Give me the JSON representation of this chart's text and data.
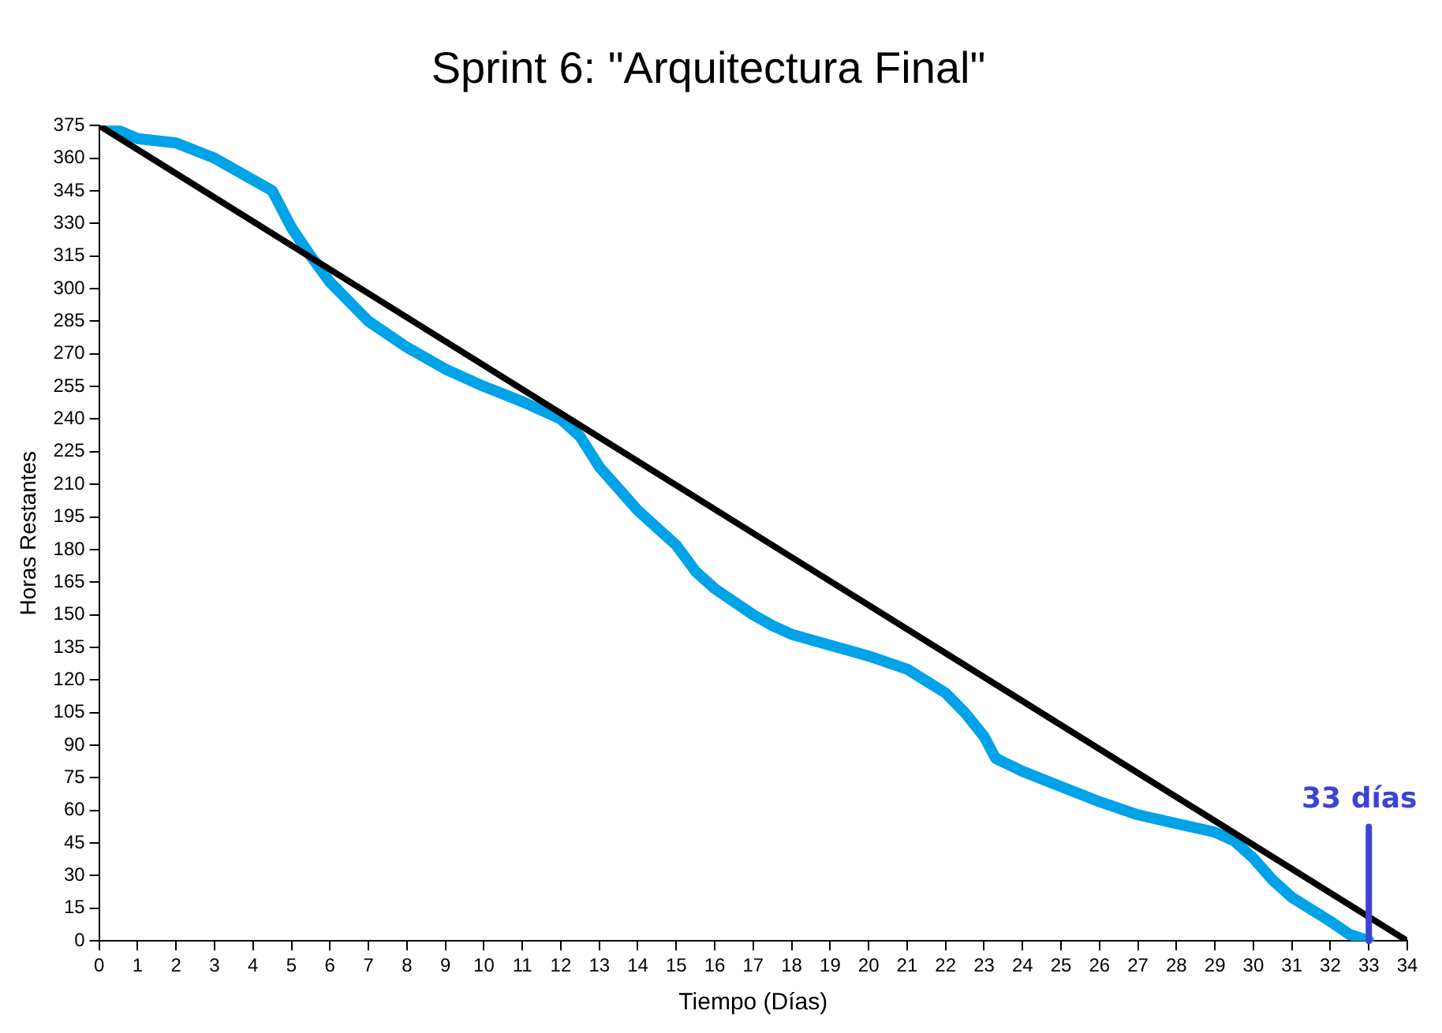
{
  "chart_data": {
    "type": "line",
    "title": "Sprint 6: \"Arquitectura Final\"",
    "xlabel": "Tiempo (Días)",
    "ylabel": "Horas Restantes",
    "xlim": [
      0,
      34
    ],
    "xticks": [
      0,
      1,
      2,
      3,
      4,
      5,
      6,
      7,
      8,
      9,
      10,
      11,
      12,
      13,
      14,
      15,
      16,
      17,
      18,
      19,
      20,
      21,
      22,
      23,
      24,
      25,
      26,
      27,
      28,
      29,
      30,
      31,
      32,
      33,
      34
    ],
    "ylim": [
      0,
      375
    ],
    "yticks": [
      0,
      15,
      30,
      45,
      60,
      75,
      90,
      105,
      120,
      135,
      150,
      165,
      180,
      195,
      210,
      225,
      240,
      255,
      270,
      285,
      300,
      315,
      330,
      345,
      360,
      375
    ],
    "grid": false,
    "legend": false,
    "marker": "none",
    "line_style": "solid",
    "series": [
      {
        "color": "#000000",
        "x": [
          0,
          34
        ],
        "values": [
          375,
          0
        ]
      },
      {
        "color": "#00a2e8",
        "x": [
          0.2,
          1,
          2,
          3,
          4,
          4.5,
          5,
          5.5,
          6,
          7,
          8,
          9,
          10,
          11,
          12,
          12.5,
          13,
          14,
          15,
          15.5,
          16,
          17,
          17.5,
          18,
          19,
          20,
          21,
          22,
          22.5,
          23,
          23.3,
          24,
          25,
          26,
          27,
          28,
          29,
          29.5,
          30,
          30.5,
          31,
          32,
          32.5,
          33
        ],
        "values": [
          375,
          369,
          367,
          360,
          350,
          345,
          328,
          315,
          303,
          285,
          273,
          263,
          255,
          248,
          240,
          232,
          218,
          198,
          182,
          170,
          162,
          150,
          145,
          141,
          136,
          131,
          125,
          114,
          105,
          94,
          84,
          78,
          71,
          64,
          58,
          54,
          50,
          46,
          38,
          28,
          20,
          9,
          3,
          0
        ]
      }
    ],
    "ref_lines": [
      {
        "axis": "x",
        "value": 33,
        "label": "33 días",
        "color": "#3b44d4"
      }
    ]
  }
}
